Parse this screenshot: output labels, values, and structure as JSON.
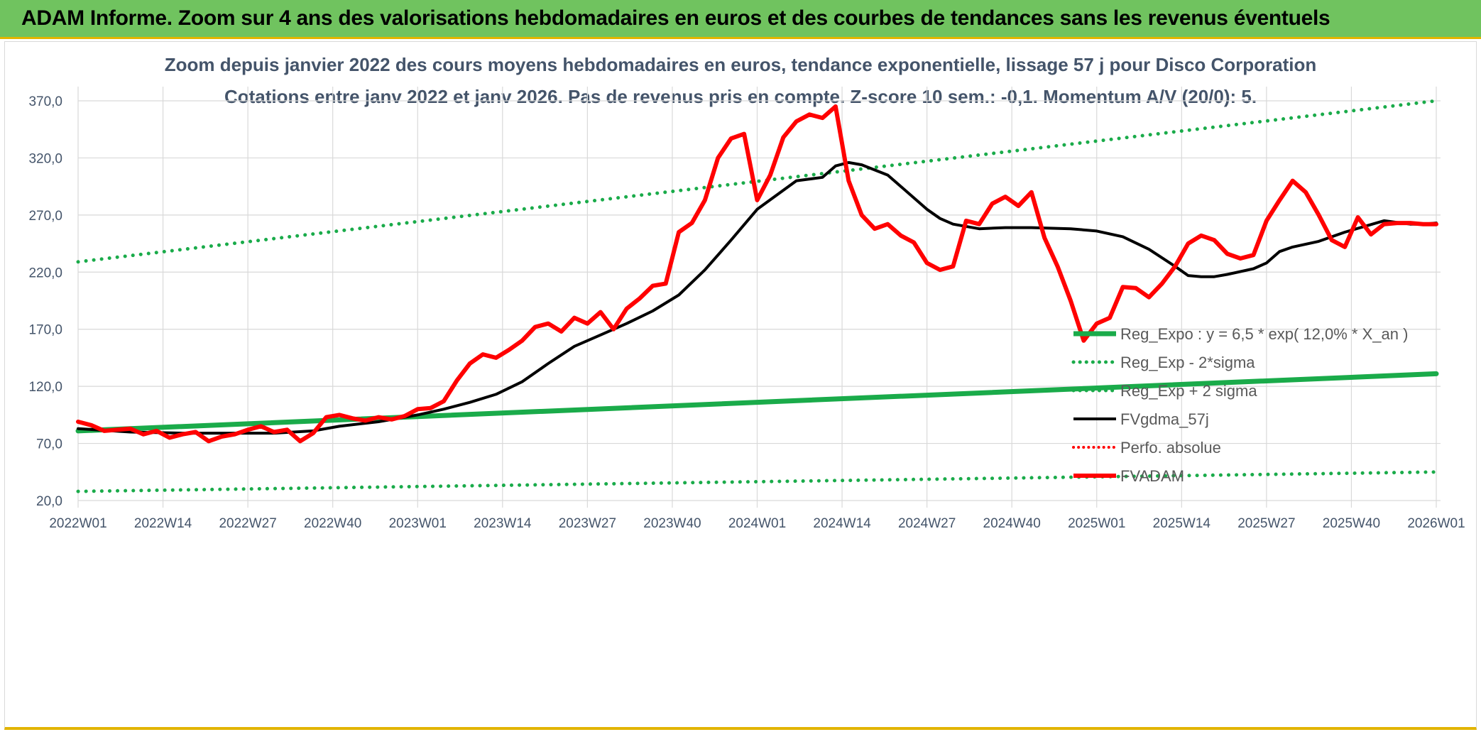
{
  "banner": {
    "title": "ADAM Informe. Zoom sur 4 ans des valorisations hebdomadaires en euros et des courbes de tendances sans les revenus éventuels"
  },
  "chart_data": {
    "type": "line",
    "title": "Zoom depuis janvier 2022 des cours moyens hebdomadaires en euros, tendance exponentielle, lissage 57 j pour Disco Corporation",
    "subtitle": "Cotations entre janv 2022 et janv 2026. Pas de revenus pris en compte. Z-score 10 sem.: -0,1. Momentum A/V (20/0): 5.",
    "x_tick_labels": [
      "2022W01",
      "2022W14",
      "2022W27",
      "2022W40",
      "2023W01",
      "2023W14",
      "2023W27",
      "2023W40",
      "2024W01",
      "2024W14",
      "2024W27",
      "2024W40",
      "2025W01",
      "2025W14",
      "2025W27",
      "2025W40",
      "2026W01"
    ],
    "y_tick_labels": [
      "20,0",
      "70,0",
      "120,0",
      "170,0",
      "220,0",
      "270,0",
      "320,0",
      "370,0"
    ],
    "ylim": [
      20,
      370
    ],
    "xlim": [
      0,
      208
    ],
    "grid": true,
    "legend_position": "bottom-right",
    "colors": {
      "reg": "#1aab4a",
      "dotted": "#1aab4a",
      "fvg": "#000000",
      "price": "#ff0000",
      "perfo": "#ff0000",
      "axis_text": "#44546a",
      "grid": "#d9d9d9"
    },
    "legend": [
      {
        "label": "Reg_Expo : y = 6,5 * exp( 12,0% *  X_an )",
        "style": "solid-green"
      },
      {
        "label": "Reg_Exp - 2*sigma",
        "style": "dotted-green"
      },
      {
        "label": "Reg_Exp + 2 sigma",
        "style": "dotted-green"
      },
      {
        "label": "FVgdma_57j",
        "style": "solid-black"
      },
      {
        "label": "Perfo. absolue",
        "style": "dotted-red"
      },
      {
        "label": "FVADAM",
        "style": "solid-red"
      }
    ],
    "series": [
      {
        "name": "Reg_Expo",
        "x": [
          0,
          208
        ],
        "values": [
          81,
          131
        ]
      },
      {
        "name": "Reg_Exp - 2*sigma",
        "x": [
          0,
          208
        ],
        "values": [
          28,
          45
        ]
      },
      {
        "name": "Reg_Exp + 2 sigma",
        "x": [
          0,
          208
        ],
        "values": [
          229,
          370
        ]
      },
      {
        "name": "FVgdma_57j",
        "x": [
          0,
          8,
          16,
          24,
          30,
          36,
          40,
          46,
          52,
          56,
          60,
          64,
          68,
          72,
          76,
          80,
          84,
          88,
          92,
          96,
          100,
          104,
          110,
          114,
          116,
          118,
          120,
          124,
          126,
          130,
          132,
          134,
          138,
          142,
          146,
          152,
          156,
          160,
          164,
          168,
          170,
          172,
          174,
          176,
          180,
          182,
          184,
          186,
          190,
          194,
          200,
          204,
          206,
          208
        ],
        "values": [
          83,
          80,
          79,
          79,
          79,
          81,
          85,
          89,
          95,
          100,
          106,
          113,
          124,
          140,
          155,
          165,
          175,
          186,
          200,
          222,
          248,
          275,
          300,
          303,
          313,
          316,
          314,
          305,
          295,
          275,
          267,
          262,
          258,
          259,
          259,
          258,
          256,
          251,
          240,
          225,
          217,
          216,
          216,
          218,
          223,
          228,
          238,
          242,
          247,
          255,
          265,
          262,
          262,
          263
        ]
      },
      {
        "name": "FVADAM",
        "x": [
          0,
          2,
          4,
          6,
          8,
          10,
          12,
          14,
          16,
          18,
          20,
          22,
          24,
          26,
          28,
          30,
          32,
          34,
          36,
          38,
          40,
          42,
          44,
          46,
          48,
          50,
          52,
          54,
          56,
          58,
          60,
          62,
          64,
          66,
          68,
          70,
          72,
          74,
          76,
          78,
          80,
          82,
          84,
          86,
          88,
          90,
          92,
          94,
          96,
          98,
          100,
          102,
          104,
          106,
          108,
          110,
          112,
          114,
          116,
          118,
          120,
          122,
          124,
          126,
          128,
          130,
          132,
          134,
          136,
          138,
          140,
          142,
          144,
          146,
          148,
          150,
          152,
          154,
          156,
          158,
          160,
          162,
          164,
          166,
          168,
          170,
          172,
          174,
          176,
          178,
          180,
          182,
          184,
          186,
          188,
          190,
          192,
          194,
          196,
          198,
          200,
          202,
          204,
          206,
          208
        ],
        "values": [
          89,
          86,
          81,
          82,
          83,
          78,
          81,
          75,
          78,
          80,
          72,
          76,
          78,
          82,
          85,
          80,
          82,
          72,
          79,
          93,
          95,
          92,
          90,
          93,
          91,
          94,
          100,
          101,
          107,
          125,
          140,
          148,
          145,
          152,
          160,
          172,
          175,
          168,
          180,
          175,
          185,
          170,
          188,
          197,
          208,
          210,
          255,
          263,
          283,
          320,
          337,
          341,
          283,
          305,
          338,
          352,
          358,
          355,
          365,
          300,
          270,
          258,
          262,
          252,
          246,
          228,
          222,
          225,
          265,
          262,
          280,
          286,
          278,
          290,
          250,
          225,
          195,
          160,
          175,
          180,
          207,
          206,
          198,
          210,
          225,
          245,
          252,
          248,
          236,
          232,
          235,
          265,
          283,
          300,
          290,
          270,
          248,
          242,
          268,
          253,
          262,
          263,
          263,
          262,
          262
        ]
      }
    ]
  }
}
